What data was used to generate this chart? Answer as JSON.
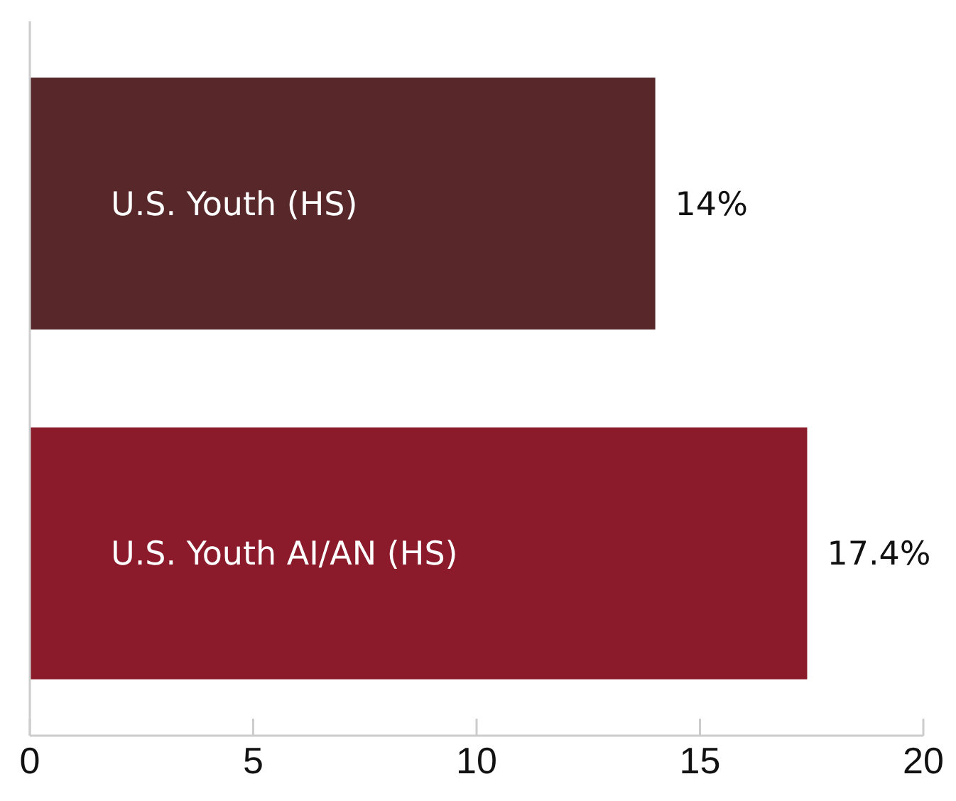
{
  "chart_data": {
    "type": "bar",
    "orientation": "horizontal",
    "categories": [
      "U.S. Youth (HS)",
      "U.S. Youth AI/AN (HS)"
    ],
    "values": [
      14,
      17.4
    ],
    "colors": [
      "#57272a",
      "#8b1a2b"
    ],
    "value_labels": [
      "14%",
      "17.4%"
    ],
    "xlim": [
      0,
      20
    ],
    "xticks": [
      0,
      5,
      10,
      15,
      20
    ],
    "grid": false
  }
}
